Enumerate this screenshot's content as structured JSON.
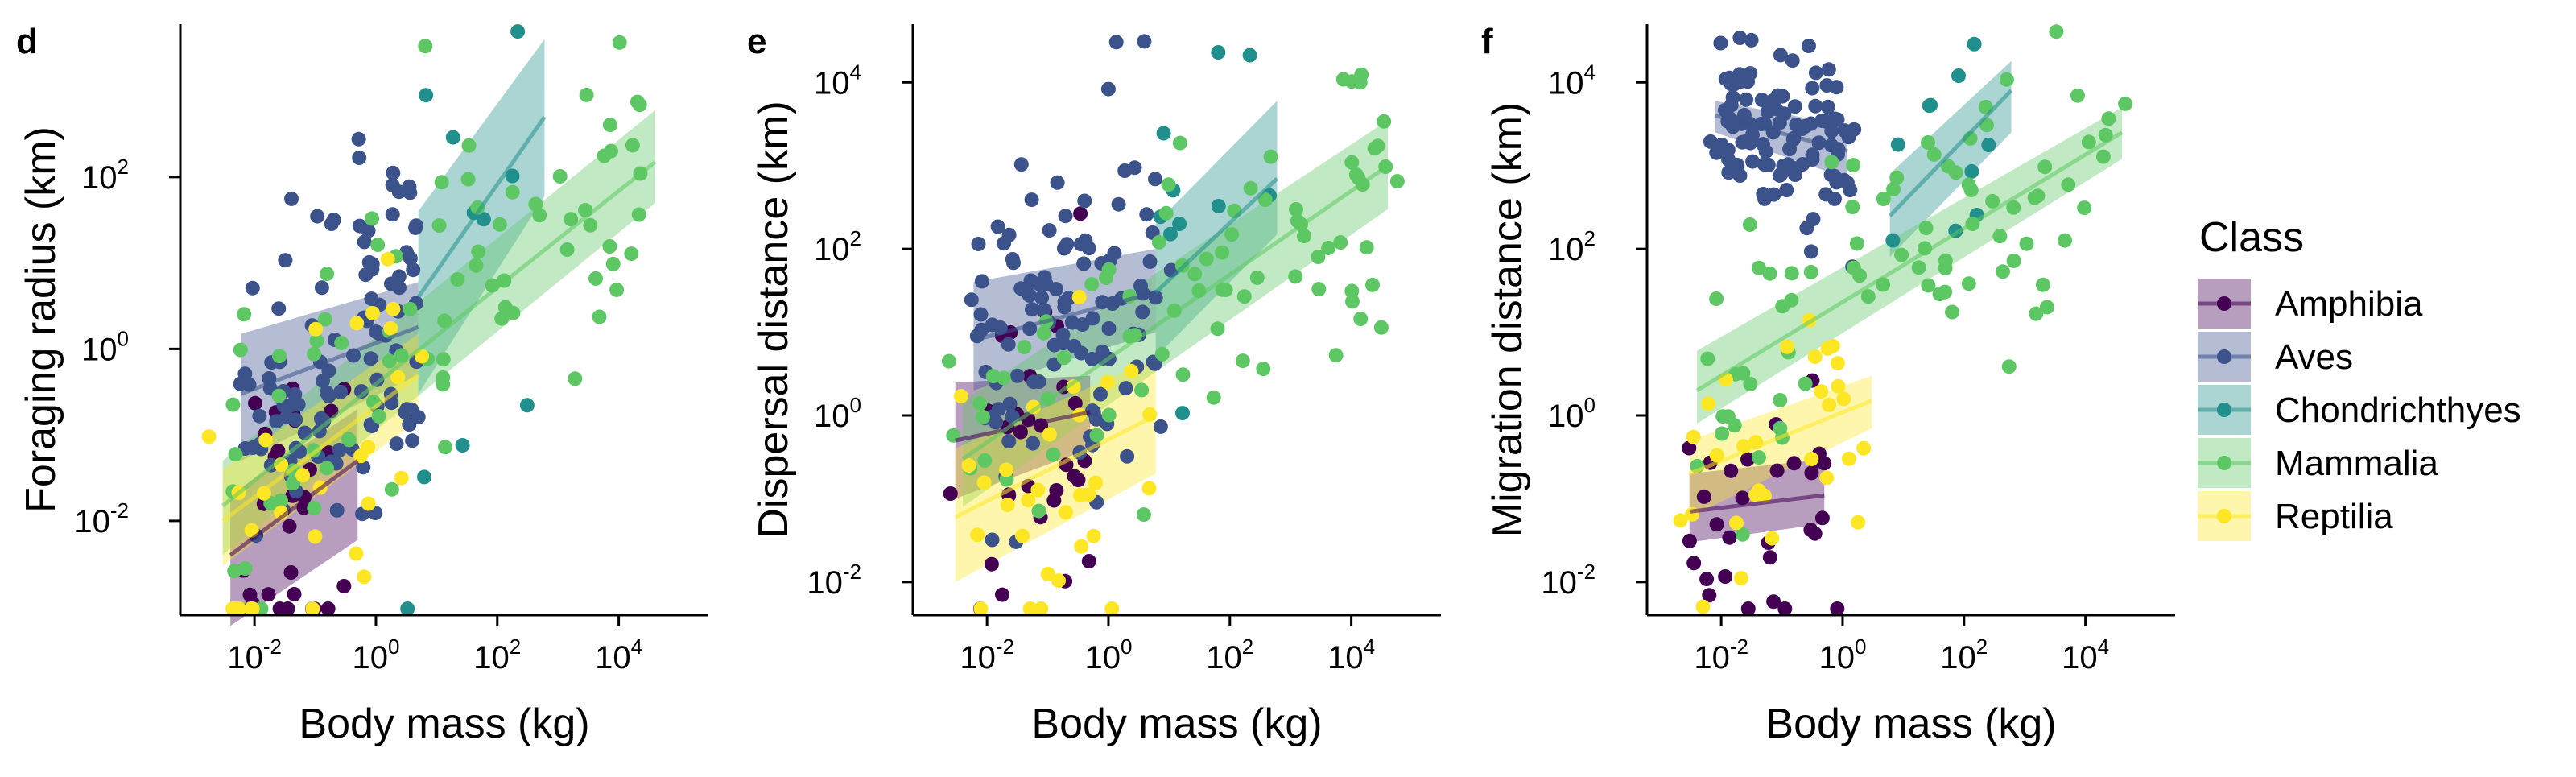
{
  "classes": [
    {
      "name": "Amphibia",
      "color": "#440154"
    },
    {
      "name": "Aves",
      "color": "#3B528B"
    },
    {
      "name": "Chondrichthyes",
      "color": "#21908C"
    },
    {
      "name": "Mammalia",
      "color": "#5DC863"
    },
    {
      "name": "Reptilia",
      "color": "#FDE725"
    }
  ],
  "legend": {
    "title": "Class"
  },
  "chart_data": [
    {
      "panel": "d",
      "type": "scatter",
      "x_scale": "log10",
      "y_scale": "log10",
      "xlabel": "Body mass (kg)",
      "ylabel": "Foraging radius (km)",
      "xlim": [
        0.0006,
        300000
      ],
      "ylim": [
        0.0008,
        6000
      ],
      "xticks": [
        0.01,
        1,
        100,
        10000
      ],
      "yticks": [
        0.01,
        1,
        100
      ],
      "fits": [
        {
          "class": "Amphibia",
          "x_range": [
            0.004,
            0.5
          ],
          "y_range": [
            0.004,
            0.05
          ],
          "band_low": [
            0.0006,
            0.006
          ],
          "band_high": [
            0.02,
            0.2
          ]
        },
        {
          "class": "Aves",
          "x_range": [
            0.006,
            5
          ],
          "y_range": [
            0.3,
            1.8
          ],
          "band_low": [
            0.05,
            0.5
          ],
          "band_high": [
            1.5,
            6
          ]
        },
        {
          "class": "Chondrichthyes",
          "x_range": [
            5,
            600
          ],
          "y_range": [
            4,
            500
          ],
          "band_low": [
            0.3,
            60
          ],
          "band_high": [
            40,
            4000
          ]
        },
        {
          "class": "Mammalia",
          "x_range": [
            0.003,
            40000
          ],
          "y_range": [
            0.015,
            150
          ],
          "band_low": [
            0.004,
            50
          ],
          "band_high": [
            0.05,
            600
          ]
        },
        {
          "class": "Reptilia",
          "x_range": [
            0.003,
            5
          ],
          "y_range": [
            0.01,
            0.5
          ],
          "band_low": [
            0.003,
            0.15
          ],
          "band_high": [
            0.04,
            1.5
          ]
        }
      ]
    },
    {
      "panel": "e",
      "type": "scatter",
      "x_scale": "log10",
      "y_scale": "log10",
      "xlabel": "Body mass (kg)",
      "ylabel": "Dispersal distance (km)",
      "xlim": [
        0.0006,
        300000
      ],
      "ylim": [
        0.004,
        50000
      ],
      "xticks": [
        0.01,
        1,
        100,
        10000
      ],
      "yticks": [
        0.01,
        1,
        100,
        10000
      ],
      "fits": [
        {
          "class": "Amphibia",
          "x_range": [
            0.003,
            0.5
          ],
          "y_range": [
            0.5,
            1.1
          ],
          "band_low": [
            0.1,
            0.4
          ],
          "band_high": [
            2.5,
            3
          ]
        },
        {
          "class": "Aves",
          "x_range": [
            0.006,
            6
          ],
          "y_range": [
            8,
            30
          ],
          "band_low": [
            2,
            10
          ],
          "band_high": [
            40,
            100
          ]
        },
        {
          "class": "Chondrichthyes",
          "x_range": [
            6,
            600
          ],
          "y_range": [
            30,
            700
          ],
          "band_low": [
            5,
            150
          ],
          "band_high": [
            200,
            6000
          ]
        },
        {
          "class": "Mammalia",
          "x_range": [
            0.004,
            40000
          ],
          "y_range": [
            0.3,
            1000
          ],
          "band_low": [
            0.08,
            300
          ],
          "band_high": [
            1.5,
            3500
          ]
        },
        {
          "class": "Reptilia",
          "x_range": [
            0.003,
            6
          ],
          "y_range": [
            0.06,
            1
          ],
          "band_low": [
            0.01,
            0.2
          ],
          "band_high": [
            0.4,
            5
          ]
        }
      ]
    },
    {
      "panel": "f",
      "type": "scatter",
      "x_scale": "log10",
      "y_scale": "log10",
      "xlabel": "Body mass (kg)",
      "ylabel": "Migration distance (km)",
      "xlim": [
        0.0006,
        300000
      ],
      "ylim": [
        0.004,
        50000
      ],
      "xticks": [
        0.01,
        1,
        100,
        10000
      ],
      "yticks": [
        0.01,
        1,
        100,
        10000
      ],
      "fits": [
        {
          "class": "Amphibia",
          "x_range": [
            0.003,
            0.5
          ],
          "y_range": [
            0.07,
            0.11
          ],
          "band_low": [
            0.03,
            0.05
          ],
          "band_high": [
            0.2,
            0.3
          ]
        },
        {
          "class": "Aves",
          "x_range": [
            0.008,
            1.2
          ],
          "y_range": [
            4000,
            1500
          ],
          "band_low": [
            2500,
            700
          ],
          "band_high": [
            6000,
            3000
          ]
        },
        {
          "class": "Chondrichthyes",
          "x_range": [
            6,
            600
          ],
          "y_range": [
            250,
            8000
          ],
          "band_low": [
            80,
            2500
          ],
          "band_high": [
            800,
            18000
          ]
        },
        {
          "class": "Mammalia",
          "x_range": [
            0.004,
            40000
          ],
          "y_range": [
            2,
            2500
          ],
          "band_low": [
            0.8,
            1200
          ],
          "band_high": [
            6,
            5000
          ]
        },
        {
          "class": "Reptilia",
          "x_range": [
            0.003,
            3
          ],
          "y_range": [
            0.2,
            1.5
          ],
          "band_low": [
            0.06,
            0.7
          ],
          "band_high": [
            0.5,
            3
          ]
        }
      ]
    }
  ]
}
